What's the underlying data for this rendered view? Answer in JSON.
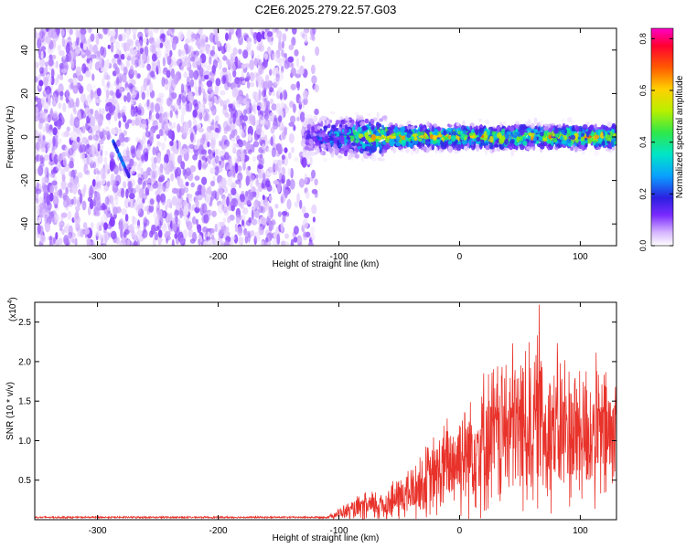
{
  "title": "C2E6.2025.279.22.57.G03",
  "colors": {
    "snr_line": "#e8322a",
    "axis": "#000000",
    "background": "#ffffff"
  },
  "chart_data": [
    {
      "type": "heatmap",
      "name": "spectrogram",
      "xlabel": "Height of straight line (km)",
      "ylabel": "Frequency (Hz)",
      "xlim": [
        -352,
        130
      ],
      "ylim": [
        -50,
        50
      ],
      "xticks": [
        -300,
        -200,
        -100,
        0,
        100
      ],
      "yticks": [
        -40,
        -20,
        0,
        20,
        40
      ],
      "tick_labels_x": [
        "-300",
        "-200",
        "-100",
        "0",
        "100"
      ],
      "tick_labels_y": [
        "-40",
        "-20",
        "0",
        "20",
        "40"
      ],
      "colorbar": {
        "label": "Normalized spectral amplitude",
        "range": [
          0.0,
          0.84
        ],
        "ticks": [
          0.0,
          0.2,
          0.4,
          0.6,
          0.8
        ],
        "tick_labels": [
          "0.0",
          "0.2",
          "0.4",
          "0.6",
          "0.8"
        ],
        "colormap": [
          "#ffffff",
          "#d7b7ff",
          "#7a2bff",
          "#2b1fe0",
          "#0aa0ff",
          "#00e5c8",
          "#2ee84a",
          "#b8f000",
          "#ffd000",
          "#ff5a00",
          "#ff0030",
          "#ff00c8"
        ]
      },
      "regions": [
        {
          "label": "noise",
          "x_range": [
            -352,
            -118
          ],
          "freq_range": [
            -50,
            50
          ],
          "amplitude": 0.08
        },
        {
          "label": "signal band",
          "x_range": [
            -130,
            130
          ],
          "center_freq_hz": 0,
          "half_width_hz": 6,
          "amplitude": 0.35
        },
        {
          "label": "streak",
          "x_range": [
            -287,
            -274
          ],
          "freq_range": [
            -18,
            -2
          ],
          "amplitude": 0.25
        }
      ]
    },
    {
      "type": "line",
      "name": "snr",
      "xlabel": "Height of straight line (km)",
      "ylabel": "SNR (10 * v/v)",
      "multiplier_label": "(x10",
      "multiplier_exp": "4",
      "multiplier_close": ")",
      "xlim": [
        -352,
        130
      ],
      "ylim": [
        0,
        2.75
      ],
      "xticks": [
        -300,
        -200,
        -100,
        0,
        100
      ],
      "yticks": [
        0.5,
        1.0,
        1.5,
        2.0,
        2.5
      ],
      "tick_labels_x": [
        "-300",
        "-200",
        "-100",
        "0",
        "100"
      ],
      "tick_labels_y": [
        "0.5",
        "1.0",
        "1.5",
        "2.0",
        "2.5"
      ],
      "envelope": [
        {
          "x": -352,
          "mean": 0.03,
          "amp": 0.01
        },
        {
          "x": -110,
          "mean": 0.03,
          "amp": 0.01
        },
        {
          "x": -100,
          "mean": 0.08,
          "amp": 0.06
        },
        {
          "x": -80,
          "mean": 0.15,
          "amp": 0.15
        },
        {
          "x": -60,
          "mean": 0.2,
          "amp": 0.2
        },
        {
          "x": -40,
          "mean": 0.35,
          "amp": 0.3
        },
        {
          "x": -20,
          "mean": 0.55,
          "amp": 0.45
        },
        {
          "x": 0,
          "mean": 0.8,
          "amp": 0.6
        },
        {
          "x": 20,
          "mean": 1.0,
          "amp": 0.75
        },
        {
          "x": 40,
          "mean": 1.15,
          "amp": 0.85
        },
        {
          "x": 60,
          "mean": 1.2,
          "amp": 0.95
        },
        {
          "x": 80,
          "mean": 1.15,
          "amp": 0.85
        },
        {
          "x": 100,
          "mean": 1.1,
          "amp": 0.8
        },
        {
          "x": 130,
          "mean": 1.05,
          "amp": 0.75
        }
      ],
      "peak": {
        "x": 66,
        "y": 2.72
      }
    }
  ]
}
